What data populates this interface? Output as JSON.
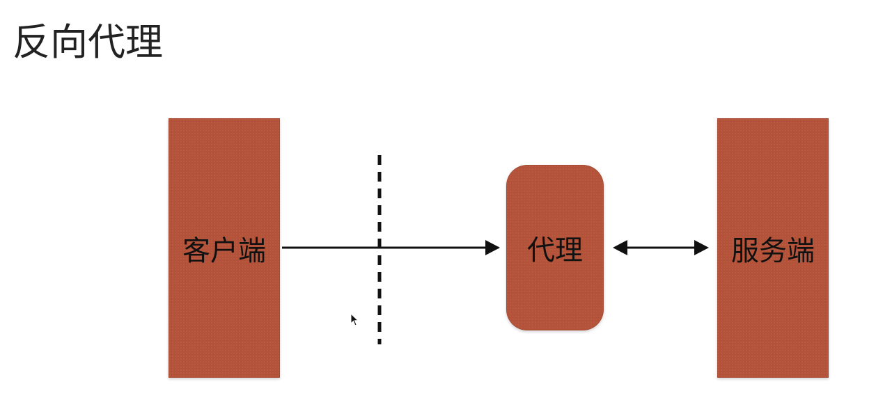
{
  "title": "反向代理",
  "nodes": {
    "client": "客户端",
    "proxy": "代理",
    "server": "服务端"
  },
  "colors": {
    "node_fill": "#b5533a",
    "line": "#111111",
    "text": "#111111"
  }
}
